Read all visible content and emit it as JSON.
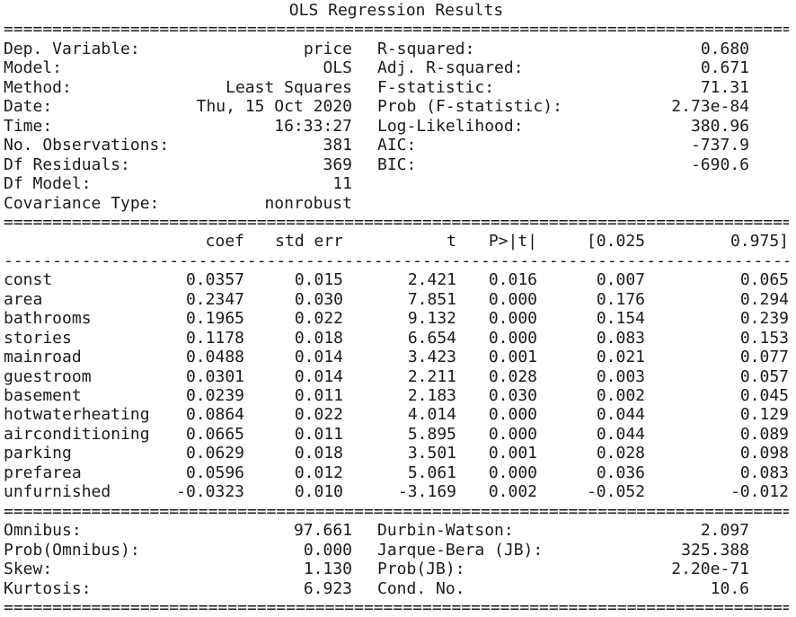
{
  "title": "OLS Regression Results",
  "top_left": [
    {
      "label": "Dep. Variable:",
      "value": "price"
    },
    {
      "label": "Model:",
      "value": "OLS"
    },
    {
      "label": "Method:",
      "value": "Least Squares"
    },
    {
      "label": "Date:",
      "value": "Thu, 15 Oct 2020"
    },
    {
      "label": "Time:",
      "value": "16:33:27"
    },
    {
      "label": "No. Observations:",
      "value": "381"
    },
    {
      "label": "Df Residuals:",
      "value": "369"
    },
    {
      "label": "Df Model:",
      "value": "11"
    },
    {
      "label": "Covariance Type:",
      "value": "nonrobust"
    }
  ],
  "top_right": [
    {
      "label": "R-squared:",
      "value": "0.680"
    },
    {
      "label": "Adj. R-squared:",
      "value": "0.671"
    },
    {
      "label": "F-statistic:",
      "value": "71.31"
    },
    {
      "label": "Prob (F-statistic):",
      "value": "2.73e-84"
    },
    {
      "label": "Log-Likelihood:",
      "value": "380.96"
    },
    {
      "label": "AIC:",
      "value": "-737.9"
    },
    {
      "label": "BIC:",
      "value": "-690.6"
    }
  ],
  "coef_table": {
    "headers": [
      "",
      "coef",
      "std err",
      "t",
      "P>|t|",
      "[0.025",
      "0.975]"
    ],
    "rows": [
      {
        "name": "const",
        "values": [
          "0.0357",
          "0.015",
          "2.421",
          "0.016",
          "0.007",
          "0.065"
        ]
      },
      {
        "name": "area",
        "values": [
          "0.2347",
          "0.030",
          "7.851",
          "0.000",
          "0.176",
          "0.294"
        ]
      },
      {
        "name": "bathrooms",
        "values": [
          "0.1965",
          "0.022",
          "9.132",
          "0.000",
          "0.154",
          "0.239"
        ]
      },
      {
        "name": "stories",
        "values": [
          "0.1178",
          "0.018",
          "6.654",
          "0.000",
          "0.083",
          "0.153"
        ]
      },
      {
        "name": "mainroad",
        "values": [
          "0.0488",
          "0.014",
          "3.423",
          "0.001",
          "0.021",
          "0.077"
        ]
      },
      {
        "name": "guestroom",
        "values": [
          "0.0301",
          "0.014",
          "2.211",
          "0.028",
          "0.003",
          "0.057"
        ]
      },
      {
        "name": "basement",
        "values": [
          "0.0239",
          "0.011",
          "2.183",
          "0.030",
          "0.002",
          "0.045"
        ]
      },
      {
        "name": "hotwaterheating",
        "values": [
          "0.0864",
          "0.022",
          "4.014",
          "0.000",
          "0.044",
          "0.129"
        ]
      },
      {
        "name": "airconditioning",
        "values": [
          "0.0665",
          "0.011",
          "5.895",
          "0.000",
          "0.044",
          "0.089"
        ]
      },
      {
        "name": "parking",
        "values": [
          "0.0629",
          "0.018",
          "3.501",
          "0.001",
          "0.028",
          "0.098"
        ]
      },
      {
        "name": "prefarea",
        "values": [
          "0.0596",
          "0.012",
          "5.061",
          "0.000",
          "0.036",
          "0.083"
        ]
      },
      {
        "name": "unfurnished",
        "values": [
          "-0.0323",
          "0.010",
          "-3.169",
          "0.002",
          "-0.052",
          "-0.012"
        ]
      }
    ]
  },
  "bottom_left": [
    {
      "label": "Omnibus:",
      "value": "97.661"
    },
    {
      "label": "Prob(Omnibus):",
      "value": "0.000"
    },
    {
      "label": "Skew:",
      "value": "1.130"
    },
    {
      "label": "Kurtosis:",
      "value": "6.923"
    }
  ],
  "bottom_right": [
    {
      "label": "Durbin-Watson:",
      "value": "2.097"
    },
    {
      "label": "Jarque-Bera (JB):",
      "value": "325.388"
    },
    {
      "label": "Prob(JB):",
      "value": "2.20e-71"
    },
    {
      "label": "Cond. No.",
      "value": "10.6"
    }
  ],
  "separators": {
    "double": "=",
    "dashed": "-"
  }
}
